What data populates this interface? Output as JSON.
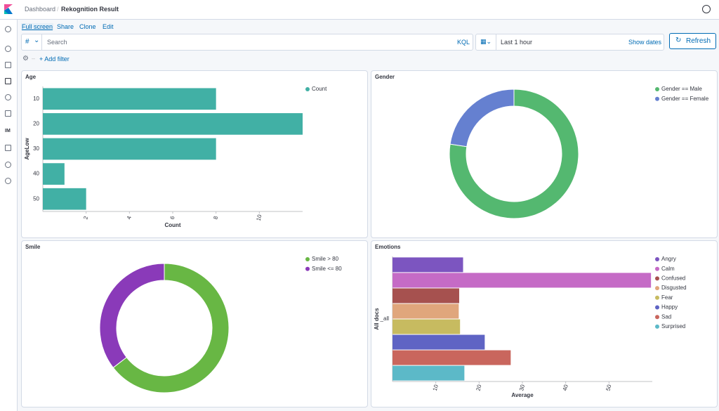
{
  "header": {
    "breadcrumbs": [
      "Dashboard",
      "Rekognition Result"
    ]
  },
  "nav": {
    "label": "IM"
  },
  "menu": [
    "Full screen",
    "Share",
    "Clone",
    "Edit"
  ],
  "query_bar": {
    "type": "#",
    "placeholder": "Search",
    "language": "KQL",
    "time": "Last 1 hour",
    "show_dates": "Show dates",
    "refresh": "Refresh"
  },
  "filter_bar": {
    "add_filter": "+ Add filter"
  },
  "chart_data": [
    {
      "type": "bar",
      "orientation": "horizontal",
      "title": "Age",
      "xlabel": "Count",
      "ylabel": "AgeLow",
      "categories": [
        "10",
        "20",
        "30",
        "40",
        "50"
      ],
      "series": [
        {
          "name": "Count",
          "color": "#41b0a5",
          "values": [
            8,
            12,
            8,
            1,
            2
          ]
        }
      ],
      "xlim": [
        0,
        12
      ],
      "xticks": [
        2,
        4,
        6,
        8,
        10
      ],
      "legend": "top-right"
    },
    {
      "type": "pie",
      "donut": true,
      "title": "Gender",
      "categories": [
        "Gender == Male",
        "Gender == Female"
      ],
      "values": [
        24,
        7
      ],
      "colors": [
        "#54b870",
        "#6580d0"
      ],
      "legend": "top-right"
    },
    {
      "type": "pie",
      "donut": true,
      "title": "Smile",
      "categories": [
        "Smile > 80",
        "Smile <= 80"
      ],
      "values": [
        20,
        11
      ],
      "colors": [
        "#68b744",
        "#8a3ab9"
      ],
      "legend": "top-right"
    },
    {
      "type": "bar",
      "orientation": "horizontal",
      "title": "Emotions",
      "xlabel": "Average",
      "ylabel": "All docs",
      "categories": [
        "_all"
      ],
      "series": [
        {
          "name": "Angry",
          "color": "#7c55c0",
          "values": [
            16.3
          ]
        },
        {
          "name": "Calm",
          "color": "#c56bc6",
          "values": [
            59.7
          ]
        },
        {
          "name": "Confused",
          "color": "#a6514f",
          "values": [
            15.4
          ]
        },
        {
          "name": "Disgusted",
          "color": "#e0a67c",
          "values": [
            15.3
          ]
        },
        {
          "name": "Fear",
          "color": "#c7bb60",
          "values": [
            15.6
          ]
        },
        {
          "name": "Happy",
          "color": "#5f64c4",
          "values": [
            21.3
          ]
        },
        {
          "name": "Sad",
          "color": "#c9665d",
          "values": [
            27.3
          ]
        },
        {
          "name": "Surprised",
          "color": "#5cb9c8",
          "values": [
            16.6
          ]
        }
      ],
      "xlim": [
        0,
        60
      ],
      "xticks": [
        10,
        20,
        30,
        40,
        50
      ],
      "legend": "top-right"
    }
  ]
}
